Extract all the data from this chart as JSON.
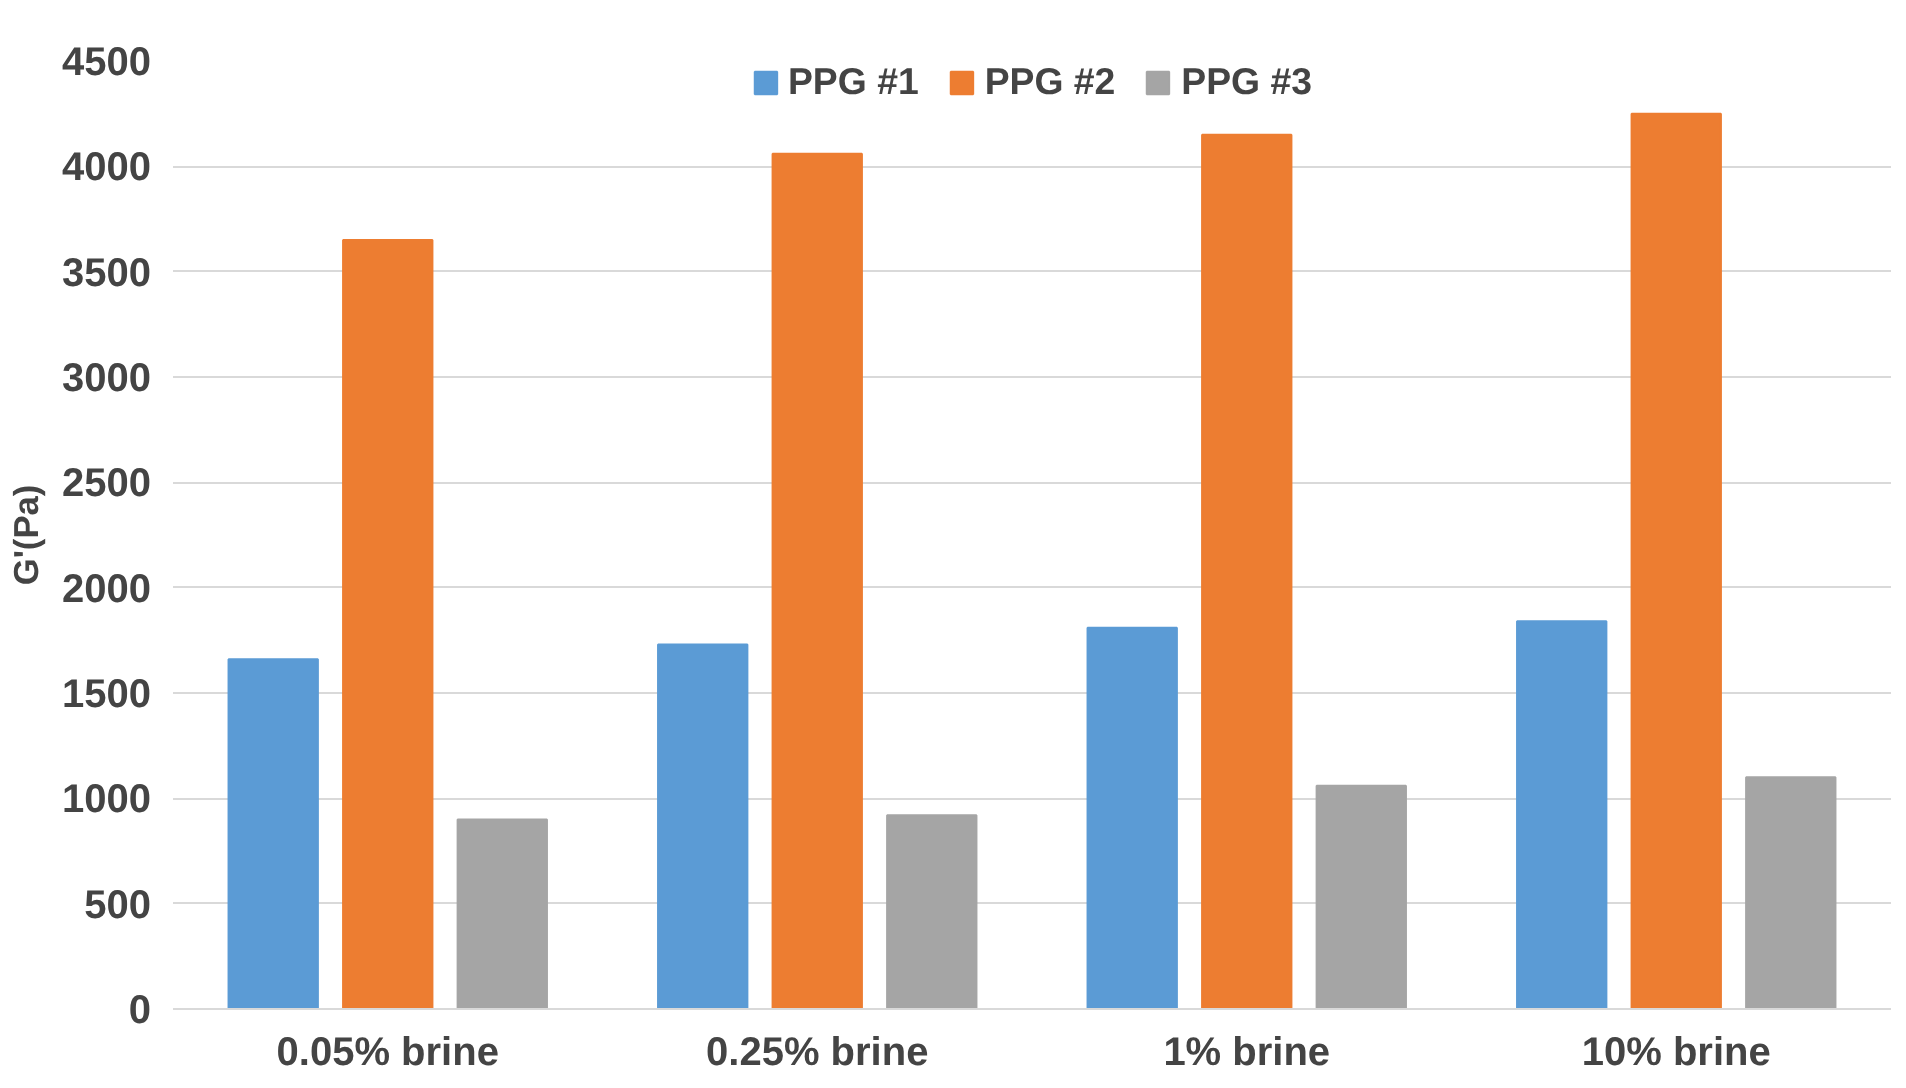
{
  "chart_data": {
    "type": "bar",
    "ylabel": "G'(Pa)",
    "categories": [
      "0.05% brine",
      "0.25% brine",
      "1% brine",
      "10% brine"
    ],
    "series": [
      {
        "name": "PPG #1",
        "color": "#5b9bd5",
        "values": [
          1660,
          1730,
          1810,
          1840
        ]
      },
      {
        "name": "PPG #2",
        "color": "#ed7d31",
        "values": [
          3650,
          4060,
          4150,
          4250
        ]
      },
      {
        "name": "PPG #3",
        "color": "#a5a5a5",
        "values": [
          900,
          920,
          1060,
          1100
        ]
      }
    ],
    "ylim": [
      0,
      4500
    ],
    "yticks": [
      0,
      500,
      1000,
      1500,
      2000,
      2500,
      3000,
      3500,
      4000,
      4500
    ],
    "grid": "y",
    "legend": "top"
  }
}
